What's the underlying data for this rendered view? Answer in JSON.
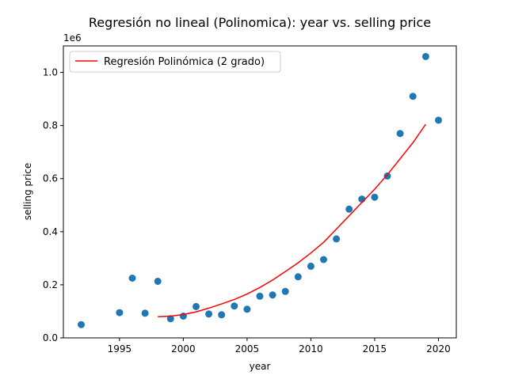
{
  "chart_data": {
    "type": "scatter",
    "title": "Regresión no lineal (Polinomica): year vs. selling price",
    "xlabel": "year",
    "ylabel": "selling price",
    "offset_label": "1e6",
    "xlim": [
      1990.6,
      2021.4
    ],
    "ylim": [
      0,
      1.1
    ],
    "x_ticks": [
      1995,
      2000,
      2005,
      2010,
      2015,
      2020
    ],
    "x_tick_labels": [
      "1995",
      "2000",
      "2005",
      "2010",
      "2015",
      "2020"
    ],
    "y_ticks": [
      0,
      0.2,
      0.4,
      0.6,
      0.8,
      1.0
    ],
    "y_tick_labels": [
      "0.0",
      "0.2",
      "0.4",
      "0.6",
      "0.8",
      "1.0"
    ],
    "grid": false,
    "legend": {
      "placement": "top-left",
      "entries": [
        "Regresión Polinómica (2 grado)"
      ]
    },
    "colors": {
      "points": "#1f77b4",
      "line": "#ff0000"
    },
    "series": [
      {
        "kind": "scatter",
        "x": [
          1992,
          1995,
          1996,
          1997,
          1998,
          1999,
          2000,
          2001,
          2002,
          2003,
          2004,
          2005,
          2006,
          2007,
          2008,
          2009,
          2010,
          2011,
          2012,
          2013,
          2014,
          2015,
          2016,
          2017,
          2018,
          2019,
          2020
        ],
        "y": [
          0.05,
          0.095,
          0.225,
          0.093,
          0.213,
          0.072,
          0.082,
          0.118,
          0.09,
          0.087,
          0.12,
          0.108,
          0.157,
          0.162,
          0.175,
          0.23,
          0.27,
          0.295,
          0.373,
          0.485,
          0.523,
          0.53,
          0.61,
          0.77,
          0.91,
          1.06,
          0.82
        ]
      },
      {
        "name": "Regresión Polinómica (2 grado)",
        "kind": "line",
        "x": [
          1998,
          1999,
          2000,
          2001,
          2002,
          2003,
          2004,
          2005,
          2006,
          2007,
          2008,
          2009,
          2010,
          2011,
          2012,
          2013,
          2014,
          2015,
          2016,
          2017,
          2018,
          2019
        ],
        "y": [
          0.08,
          0.082,
          0.088,
          0.098,
          0.112,
          0.128,
          0.145,
          0.165,
          0.19,
          0.218,
          0.25,
          0.283,
          0.32,
          0.36,
          0.41,
          0.46,
          0.51,
          0.56,
          0.615,
          0.675,
          0.735,
          0.805
        ]
      }
    ]
  }
}
